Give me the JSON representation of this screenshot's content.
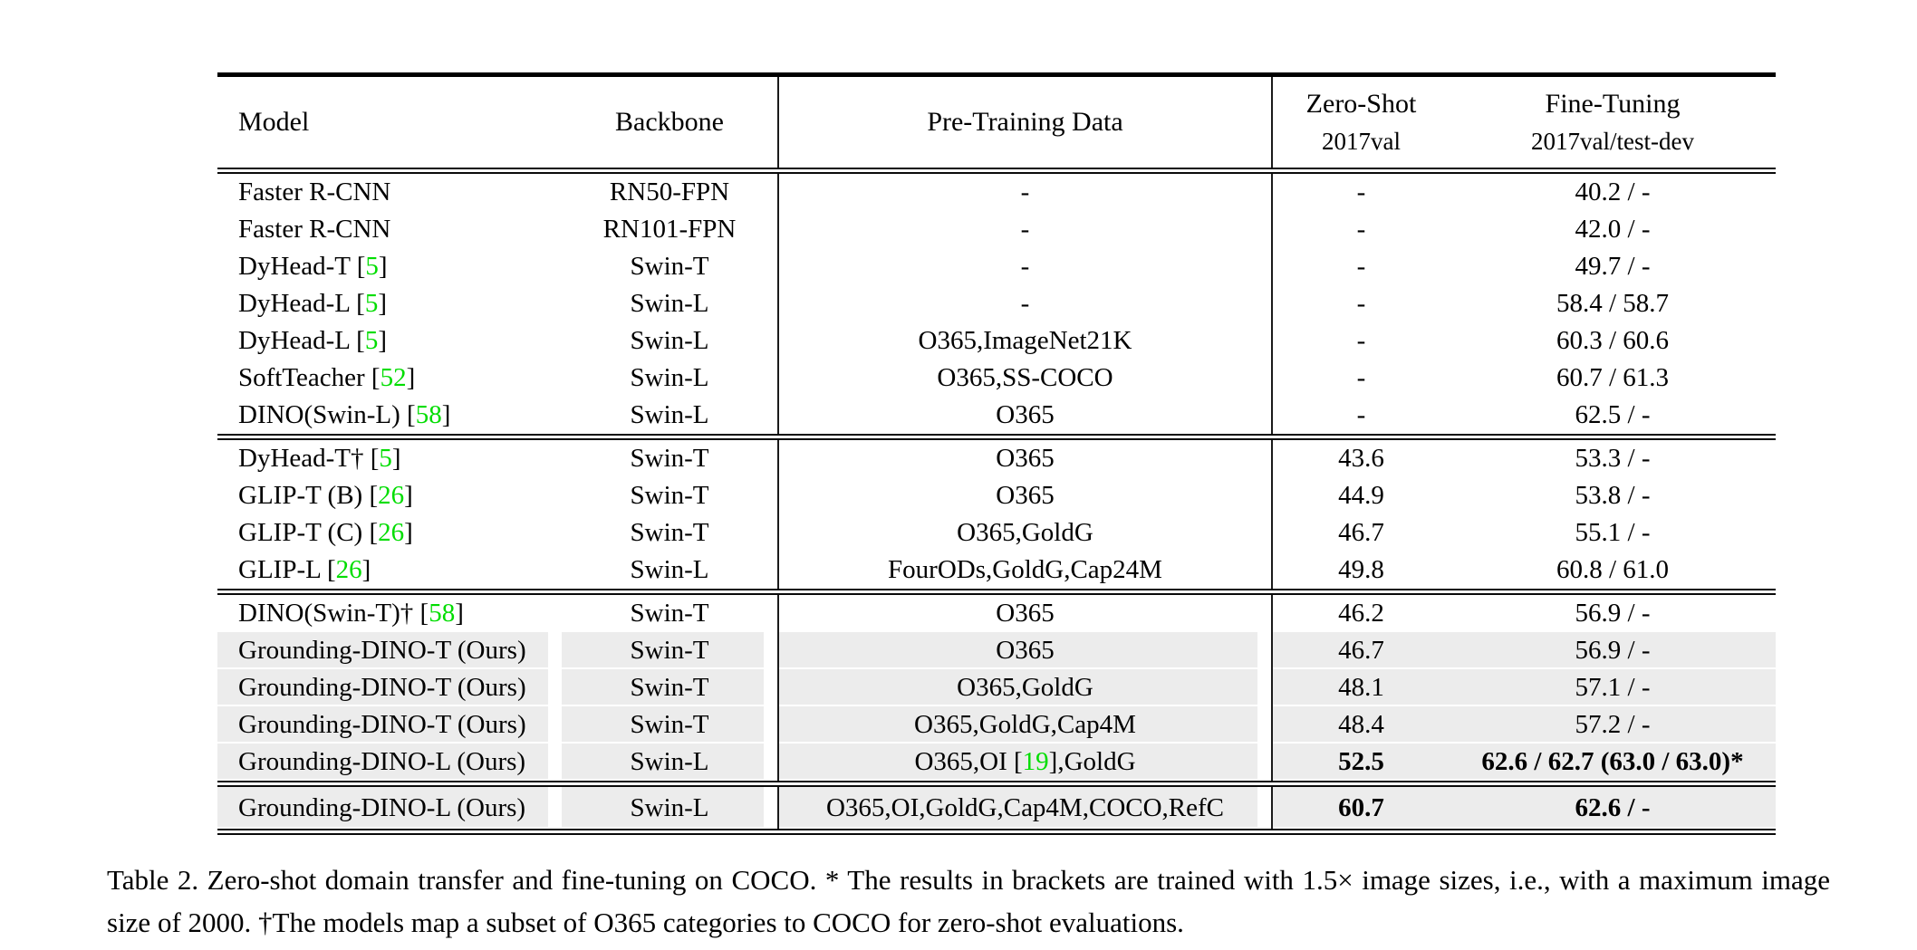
{
  "colors": {
    "citation_green": "#00dd00",
    "row_shade": "#ececec",
    "rule_black": "#000000"
  },
  "table": {
    "header": {
      "model": "Model",
      "backbone": "Backbone",
      "pretrain": "Pre-Training Data",
      "zeroshot_title": "Zero-Shot",
      "zeroshot_sub": "2017val",
      "finetune_title": "Fine-Tuning",
      "finetune_sub": "2017val/test-dev"
    },
    "sections": [
      {
        "rows": [
          {
            "model": "Faster R-CNN",
            "backbone": "RN50-FPN",
            "pretrain": "-",
            "zs": "-",
            "ft": "40.2 / -"
          },
          {
            "model": "Faster R-CNN",
            "backbone": "RN101-FPN",
            "pretrain": "-",
            "zs": "-",
            "ft": "42.0 / -"
          },
          {
            "model": "DyHead-T [5]",
            "backbone": "Swin-T",
            "pretrain": "-",
            "zs": "-",
            "ft": "49.7 / -"
          },
          {
            "model": "DyHead-L [5]",
            "backbone": "Swin-L",
            "pretrain": "-",
            "zs": "-",
            "ft": "58.4 / 58.7"
          },
          {
            "model": "DyHead-L [5]",
            "backbone": "Swin-L",
            "pretrain": "O365,ImageNet21K",
            "zs": "-",
            "ft": "60.3 / 60.6"
          },
          {
            "model": "SoftTeacher [52]",
            "backbone": "Swin-L",
            "pretrain": "O365,SS-COCO",
            "zs": "-",
            "ft": "60.7 / 61.3"
          },
          {
            "model": "DINO(Swin-L) [58]",
            "backbone": "Swin-L",
            "pretrain": "O365",
            "zs": "-",
            "ft": "62.5 / -"
          }
        ]
      },
      {
        "rows": [
          {
            "model": "DyHead-T† [5]",
            "backbone": "Swin-T",
            "pretrain": "O365",
            "zs": "43.6",
            "ft": "53.3 / -"
          },
          {
            "model": "GLIP-T (B) [26]",
            "backbone": "Swin-T",
            "pretrain": "O365",
            "zs": "44.9",
            "ft": "53.8 / -"
          },
          {
            "model": "GLIP-T (C) [26]",
            "backbone": "Swin-T",
            "pretrain": "O365,GoldG",
            "zs": "46.7",
            "ft": "55.1 / -"
          },
          {
            "model": "GLIP-L [26]",
            "backbone": "Swin-L",
            "pretrain": "FourODs,GoldG,Cap24M",
            "zs": "49.8",
            "ft": "60.8 / 61.0"
          }
        ]
      },
      {
        "rows": [
          {
            "model": "DINO(Swin-T)† [58]",
            "backbone": "Swin-T",
            "pretrain": "O365",
            "zs": "46.2",
            "ft": "56.9 / -"
          },
          {
            "model": "Grounding-DINO-T (Ours)",
            "backbone": "Swin-T",
            "pretrain": "O365",
            "zs": "46.7",
            "ft": "56.9 / -",
            "shaded": true
          },
          {
            "model": "Grounding-DINO-T (Ours)",
            "backbone": "Swin-T",
            "pretrain": "O365,GoldG",
            "zs": "48.1",
            "ft": "57.1 / -",
            "shaded": true
          },
          {
            "model": "Grounding-DINO-T (Ours)",
            "backbone": "Swin-T",
            "pretrain": "O365,GoldG,Cap4M",
            "zs": "48.4",
            "ft": "57.2 / -",
            "shaded": true
          },
          {
            "model": "Grounding-DINO-L (Ours)",
            "backbone": "Swin-L",
            "pretrain": "O365,OI [19],GoldG",
            "zs": "52.5",
            "ft": "62.6 / 62.7 (63.0 / 63.0)*",
            "shaded": true,
            "bold": true
          }
        ]
      },
      {
        "rows": [
          {
            "model": "Grounding-DINO-L (Ours)",
            "backbone": "Swin-L",
            "pretrain": "O365,OI,GoldG,Cap4M,COCO,RefC",
            "zs": "60.7",
            "ft": "62.6 / -",
            "shaded": true,
            "bold": true
          }
        ]
      }
    ]
  },
  "caption": "Table 2.  Zero-shot domain transfer and fine-tuning on COCO. * The results in brackets are trained with 1.5× image sizes, i.e., with a maximum image size of 2000. †The models map a subset of O365 categories to COCO for zero-shot evaluations."
}
